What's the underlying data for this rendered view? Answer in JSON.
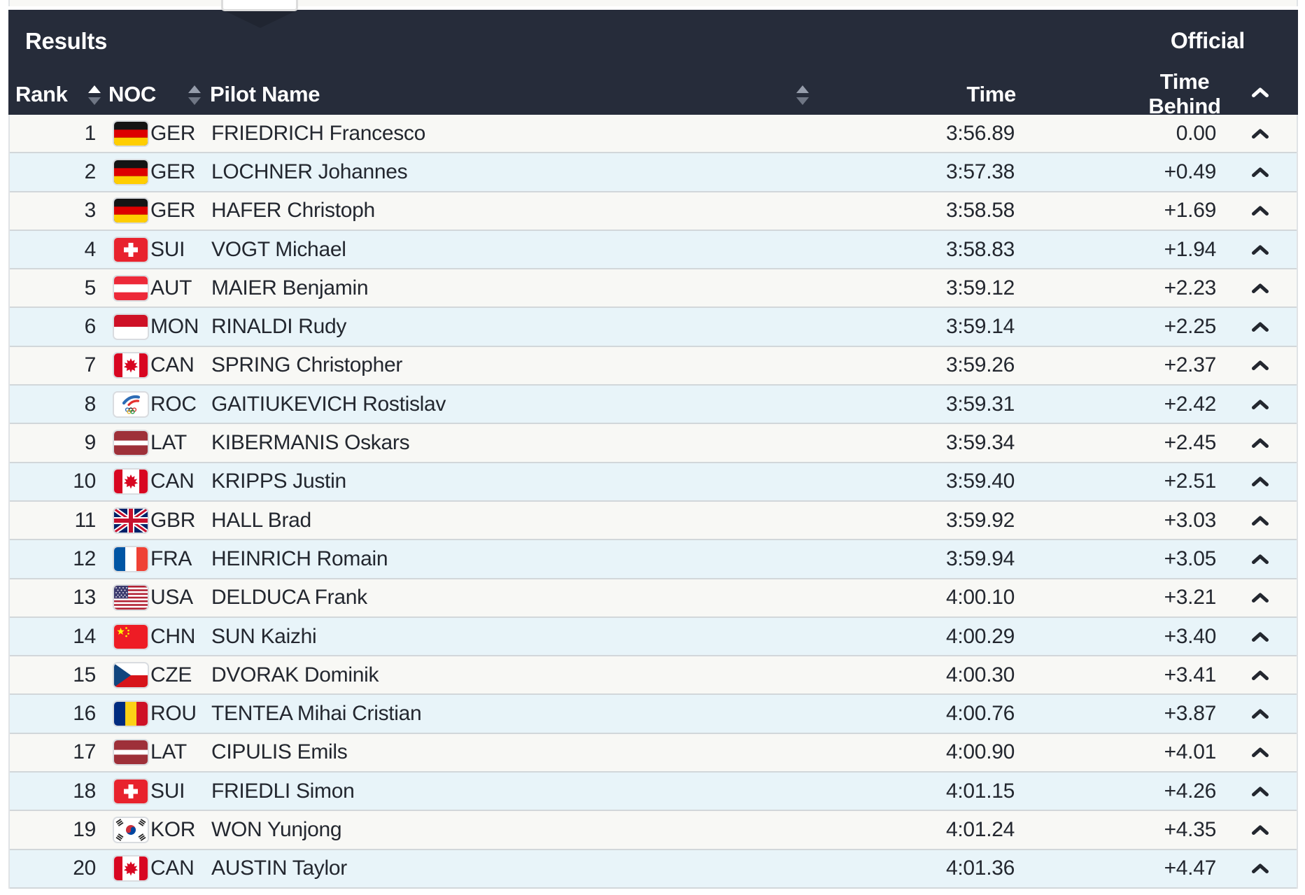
{
  "panel": {
    "title": "Results",
    "status": "Official"
  },
  "columns": {
    "rank": "Rank",
    "noc": "NOC",
    "pilot": "Pilot Name",
    "time": "Time",
    "time_behind": "Time Behind"
  },
  "colors": {
    "header_bg": "#262c3a",
    "header_text": "#ffffff",
    "row_odd": "#f8f8f5",
    "row_even": "#e8f4f9",
    "row_border": "#d2d7da",
    "text": "#23272f"
  },
  "icons": {
    "sort": "sort-arrows",
    "row_expand": "chevron-up",
    "header_collapse": "chevron-up"
  },
  "rows": [
    {
      "rank": "1",
      "noc": "GER",
      "pilot": "FRIEDRICH Francesco",
      "time": "3:56.89",
      "behind": "0.00"
    },
    {
      "rank": "2",
      "noc": "GER",
      "pilot": "LOCHNER Johannes",
      "time": "3:57.38",
      "behind": "+0.49"
    },
    {
      "rank": "3",
      "noc": "GER",
      "pilot": "HAFER Christoph",
      "time": "3:58.58",
      "behind": "+1.69"
    },
    {
      "rank": "4",
      "noc": "SUI",
      "pilot": "VOGT Michael",
      "time": "3:58.83",
      "behind": "+1.94"
    },
    {
      "rank": "5",
      "noc": "AUT",
      "pilot": "MAIER Benjamin",
      "time": "3:59.12",
      "behind": "+2.23"
    },
    {
      "rank": "6",
      "noc": "MON",
      "pilot": "RINALDI Rudy",
      "time": "3:59.14",
      "behind": "+2.25"
    },
    {
      "rank": "7",
      "noc": "CAN",
      "pilot": "SPRING Christopher",
      "time": "3:59.26",
      "behind": "+2.37"
    },
    {
      "rank": "8",
      "noc": "ROC",
      "pilot": "GAITIUKEVICH Rostislav",
      "time": "3:59.31",
      "behind": "+2.42"
    },
    {
      "rank": "9",
      "noc": "LAT",
      "pilot": "KIBERMANIS Oskars",
      "time": "3:59.34",
      "behind": "+2.45"
    },
    {
      "rank": "10",
      "noc": "CAN",
      "pilot": "KRIPPS Justin",
      "time": "3:59.40",
      "behind": "+2.51"
    },
    {
      "rank": "11",
      "noc": "GBR",
      "pilot": "HALL Brad",
      "time": "3:59.92",
      "behind": "+3.03"
    },
    {
      "rank": "12",
      "noc": "FRA",
      "pilot": "HEINRICH Romain",
      "time": "3:59.94",
      "behind": "+3.05"
    },
    {
      "rank": "13",
      "noc": "USA",
      "pilot": "DELDUCA Frank",
      "time": "4:00.10",
      "behind": "+3.21"
    },
    {
      "rank": "14",
      "noc": "CHN",
      "pilot": "SUN Kaizhi",
      "time": "4:00.29",
      "behind": "+3.40"
    },
    {
      "rank": "15",
      "noc": "CZE",
      "pilot": "DVORAK Dominik",
      "time": "4:00.30",
      "behind": "+3.41"
    },
    {
      "rank": "16",
      "noc": "ROU",
      "pilot": "TENTEA Mihai Cristian",
      "time": "4:00.76",
      "behind": "+3.87"
    },
    {
      "rank": "17",
      "noc": "LAT",
      "pilot": "CIPULIS Emils",
      "time": "4:00.90",
      "behind": "+4.01"
    },
    {
      "rank": "18",
      "noc": "SUI",
      "pilot": "FRIEDLI Simon",
      "time": "4:01.15",
      "behind": "+4.26"
    },
    {
      "rank": "19",
      "noc": "KOR",
      "pilot": "WON Yunjong",
      "time": "4:01.24",
      "behind": "+4.35"
    },
    {
      "rank": "20",
      "noc": "CAN",
      "pilot": "AUSTIN Taylor",
      "time": "4:01.36",
      "behind": "+4.47"
    }
  ]
}
